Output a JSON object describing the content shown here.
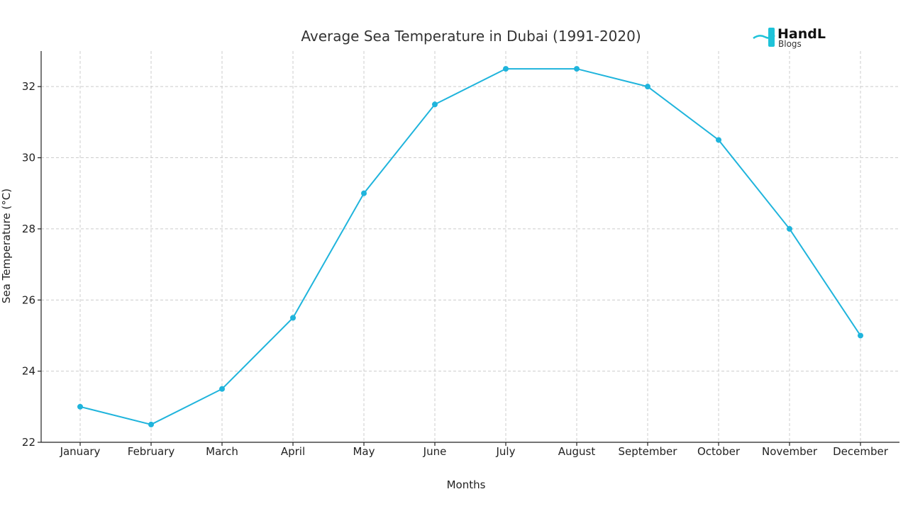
{
  "logo": {
    "main": "HandL",
    "sub": "Blogs",
    "accent_color": "#1ec3d9"
  },
  "chart_data": {
    "type": "line",
    "title": "Average Sea Temperature in Dubai (1991-2020)",
    "xlabel": "Months",
    "ylabel": "Sea Temperature (°C)",
    "categories": [
      "January",
      "February",
      "March",
      "April",
      "May",
      "June",
      "July",
      "August",
      "September",
      "October",
      "November",
      "December"
    ],
    "values": [
      23,
      22.5,
      23.5,
      25.5,
      29,
      31.5,
      32.5,
      32.5,
      32,
      30.5,
      28,
      25
    ],
    "ylim": [
      22,
      33
    ],
    "yticks": [
      "22",
      "24",
      "26",
      "28",
      "30",
      "32"
    ],
    "grid": true,
    "line_color": "#1fb4dc"
  }
}
